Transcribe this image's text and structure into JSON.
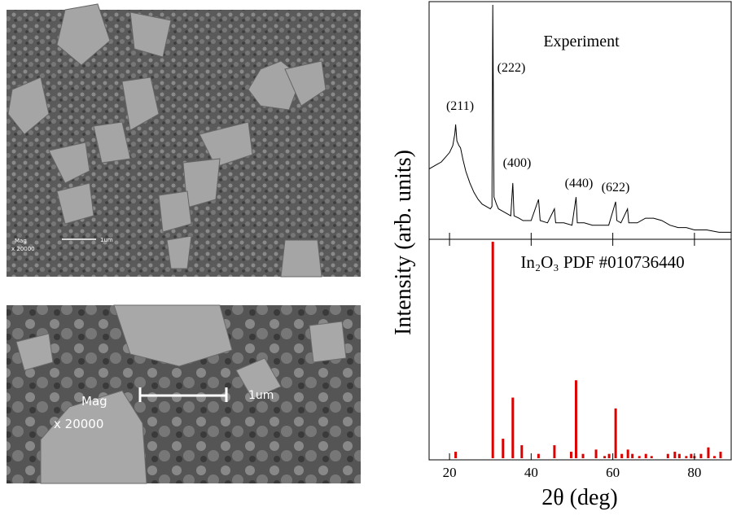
{
  "images": [
    {
      "mag_label": "Mag",
      "magnification": "x 20000",
      "scale_label": "1um"
    },
    {
      "mag_label": "Mag",
      "magnification": "x 20000",
      "scale_label": "1um"
    }
  ],
  "chart_data": [
    {
      "type": "line",
      "annotations": [
        "Experiment",
        "(211)",
        "(222)",
        "(400)",
        "(440)",
        "(622)"
      ],
      "color": "#000000",
      "x": [
        15,
        16,
        17,
        18,
        19,
        20,
        20.8,
        21.3,
        21.5,
        21.8,
        22.3,
        22.7,
        23.3,
        24,
        25,
        26,
        27,
        28,
        29,
        30,
        30.4,
        30.6,
        30.9,
        31.5,
        32,
        33,
        34,
        35,
        35.5,
        35.8,
        37,
        38,
        40,
        41.8,
        42.2,
        44,
        45.7,
        46,
        48,
        50,
        51,
        51.3,
        53,
        55,
        57,
        59,
        60.7,
        61,
        62,
        63.6,
        63.9,
        66,
        68,
        70,
        72,
        74,
        76,
        78,
        80,
        83,
        86,
        89
      ],
      "values": [
        30,
        31,
        32,
        33,
        35,
        37,
        40,
        45,
        49,
        42,
        40,
        39,
        34,
        29,
        24,
        20,
        17,
        15,
        14,
        13,
        14,
        100,
        18,
        15,
        13,
        12,
        11,
        10,
        24,
        10,
        9,
        8,
        8,
        17,
        8,
        7,
        13,
        7,
        7,
        6,
        18,
        7,
        7,
        6,
        6,
        6,
        16,
        8,
        7,
        13,
        7,
        7,
        9,
        9,
        8,
        6,
        5,
        5,
        4,
        4,
        3,
        3
      ],
      "xlim": [
        15,
        89
      ],
      "ylim": [
        0,
        100
      ]
    },
    {
      "type": "stick",
      "title": "In₂O₃ PDF #010736440",
      "x_label": "2θ (deg)",
      "y_label": "Intensity (arb. units)",
      "color": "#dd0000",
      "x": [
        21.5,
        30.6,
        33.1,
        35.5,
        37.7,
        41.8,
        45.7,
        49.8,
        51,
        52.7,
        55.9,
        58,
        59.1,
        60.7,
        62.2,
        63.7,
        64.8,
        66.5,
        68.1,
        69.5,
        73.5,
        75.2,
        76.3,
        78,
        79.2,
        80,
        81.6,
        83.4,
        84.9,
        86.4
      ],
      "values": [
        3,
        100,
        9,
        28,
        6,
        2,
        6,
        3,
        36,
        2,
        4,
        1,
        2,
        23,
        2,
        4,
        2,
        1,
        2,
        1,
        2,
        3,
        2,
        1,
        2,
        1,
        2,
        5,
        1,
        3
      ],
      "xlim": [
        15,
        89
      ],
      "ylim": [
        0,
        100
      ],
      "xticks": [
        20,
        40,
        60,
        80
      ]
    }
  ]
}
